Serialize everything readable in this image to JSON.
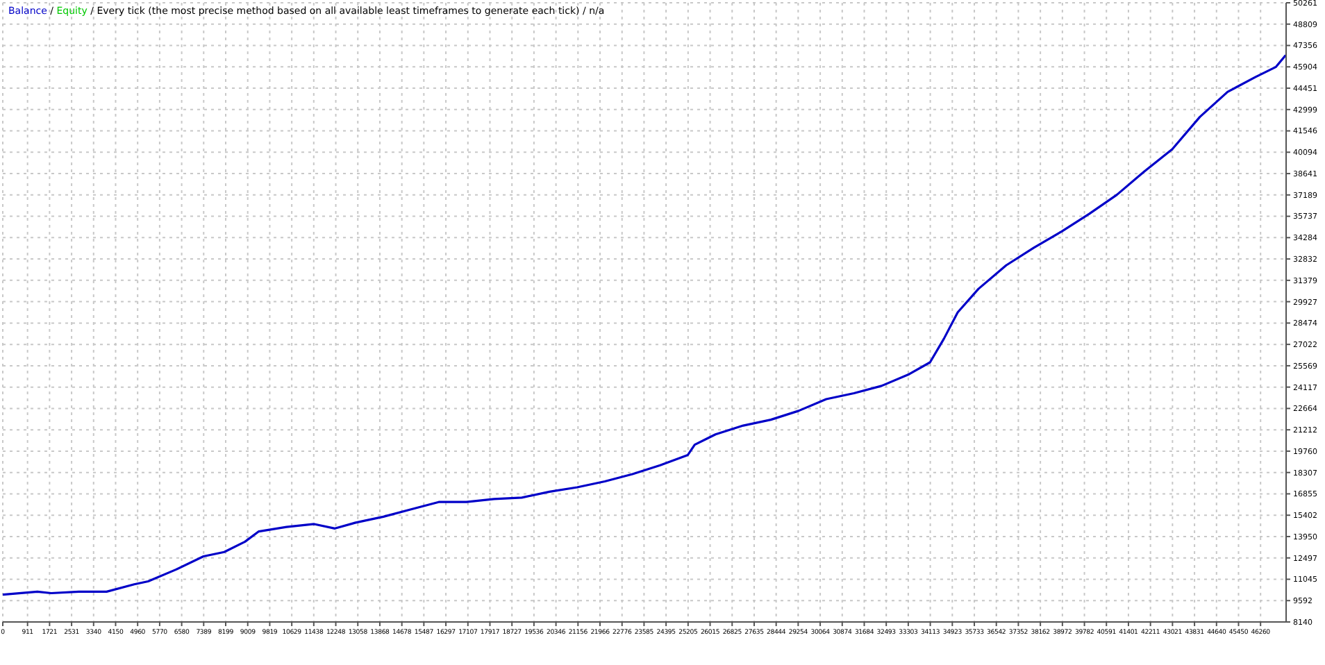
{
  "chart_data": {
    "type": "line",
    "title": "Every tick (the most precise method based on all available least timeframes to generate each tick) / n/a",
    "legend": "top left",
    "annotations": [
      "/",
      "/"
    ],
    "grid": true,
    "marker": "none",
    "line_style": "solid",
    "x": [
      0,
      1273,
      1782,
      2800,
      3818,
      4836,
      5345,
      6363,
      7381,
      8144,
      8908,
      9417,
      10435,
      11453,
      12216,
      12980,
      13998,
      15016,
      16034,
      17052,
      18070,
      19088,
      20106,
      21124,
      22142,
      23160,
      24178,
      25196,
      25450,
      26214,
      27232,
      28250,
      29268,
      30286,
      31304,
      32322,
      33340,
      34103,
      34612,
      35121,
      35885,
      36903,
      37921,
      38939,
      39957,
      40975,
      41993,
      43011,
      44029,
      45047,
      46065,
      46828,
      47184
    ],
    "series": [
      {
        "name": "Balance",
        "color": "#0000c8",
        "values": [
          10000,
          10200,
          10100,
          10200,
          10200,
          10700,
          10900,
          11700,
          12600,
          12900,
          13600,
          14300,
          14600,
          14800,
          14500,
          14900,
          15300,
          15800,
          16300,
          16300,
          16500,
          16600,
          17000,
          17300,
          17700,
          18200,
          18800,
          19500,
          20200,
          20900,
          21500,
          21900,
          22500,
          23300,
          23700,
          24200,
          25000,
          25800,
          27400,
          29200,
          30800,
          32400,
          33600,
          34700,
          35900,
          37200,
          38800,
          40300,
          42500,
          44200,
          45200,
          45900,
          46700
        ]
      },
      {
        "name": "Equity",
        "color": "#00c800",
        "values": [
          null,
          null,
          null,
          null,
          null,
          null,
          null,
          null,
          null,
          null,
          null,
          null,
          null,
          null,
          null,
          null,
          null,
          null,
          null,
          null,
          null,
          null,
          null,
          null,
          null,
          null,
          null,
          null,
          null,
          null,
          null,
          null,
          null,
          null,
          null,
          null,
          null,
          null,
          null,
          null,
          null,
          null,
          null,
          null,
          null,
          null,
          null,
          null,
          null,
          null,
          null,
          null,
          null
        ]
      }
    ],
    "xlim": [
      0,
      47200
    ],
    "xticks": [
      0,
      911,
      1721,
      2531,
      3340,
      4150,
      4960,
      5770,
      6580,
      7389,
      8199,
      9009,
      9819,
      10629,
      11438,
      12248,
      13058,
      13868,
      14678,
      15487,
      16297,
      17107,
      17917,
      18727,
      19536,
      20346,
      21156,
      21966,
      22776,
      23585,
      24395,
      25205,
      26015,
      26825,
      27635,
      28444,
      29254,
      30064,
      30874,
      31684,
      32493,
      33303,
      34113,
      34923,
      35733,
      36542,
      37352,
      38162,
      38972,
      39782,
      40591,
      41401,
      42211,
      43021,
      43831,
      44640,
      45450,
      46260
    ],
    "ylim": [
      8140,
      50261
    ],
    "yticks": [
      8140,
      9592,
      11045,
      12497,
      13950,
      15402,
      16855,
      18307,
      19760,
      21212,
      22664,
      24117,
      25569,
      27022,
      28474,
      29927,
      31379,
      32832,
      34284,
      35737,
      37189,
      38641,
      40094,
      41546,
      42999,
      44451,
      45904,
      47356,
      48809,
      50261
    ]
  }
}
